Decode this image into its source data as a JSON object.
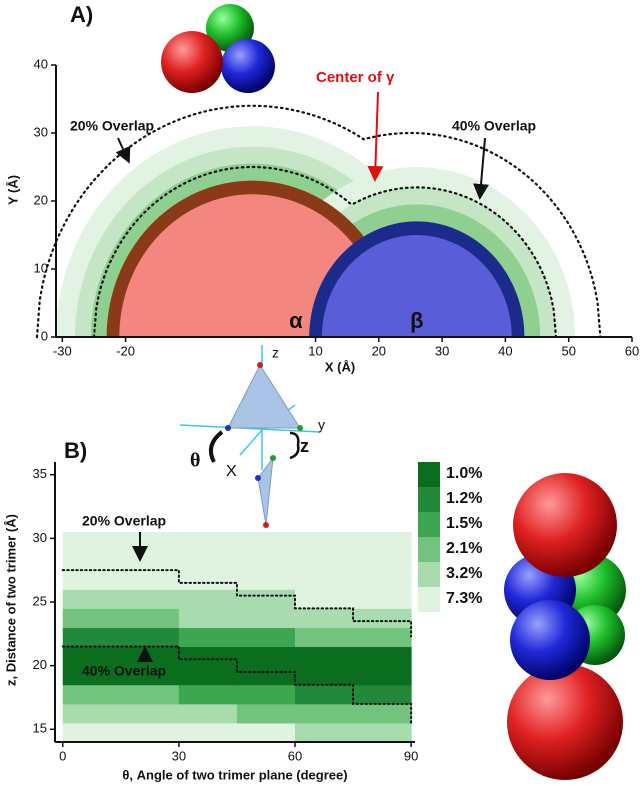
{
  "chart_data": [
    {
      "type": "overlap-map",
      "panel_label": "A)",
      "x_label": "X (Å)",
      "y_label": "Y (Å)",
      "xlim": [
        -31,
        60
      ],
      "ylim": [
        0,
        40
      ],
      "xticks": [
        -30,
        -20,
        10,
        20,
        30,
        40,
        50,
        60
      ],
      "yticks": [
        0,
        10,
        20,
        30,
        40
      ],
      "disks": [
        {
          "label": "α",
          "cx": 0,
          "r": 23,
          "color": "#f3877f",
          "ring": "#8a3a18"
        },
        {
          "label": "β",
          "cx": 26,
          "r": 17,
          "color": "#6f6ff2",
          "ring": "#1b2b8c"
        }
      ],
      "overlap_curves": [
        {
          "label": "20% Overlap",
          "arcs": [
            {
              "cx": 0,
              "r": 34
            },
            {
              "cx": 25,
              "r": 30
            }
          ]
        },
        {
          "label": "40% Overlap",
          "arcs": [
            {
              "cx": 0,
              "r": 25
            },
            {
              "cx": 26,
              "r": 22
            }
          ]
        }
      ],
      "annotation": "Center of γ"
    },
    {
      "type": "heatmap",
      "panel_label": "B)",
      "x_label": "θ, Angle of two trimer plane (degree)",
      "y_label": "z, Distance of two trimer (Å)",
      "xlim": [
        -2,
        91
      ],
      "ylim": [
        14,
        36
      ],
      "xticks": [
        0,
        30,
        60,
        90
      ],
      "yticks": [
        15,
        20,
        25,
        30,
        35
      ],
      "x_bins": [
        0,
        15,
        30,
        45,
        60,
        75,
        90
      ],
      "y_bins": [
        14,
        15.5,
        17,
        18.5,
        20,
        21.5,
        23,
        24.5,
        26,
        27.5,
        29,
        30.5
      ],
      "levels": [
        1.0,
        1.2,
        1.5,
        2.1,
        3.2,
        7.3
      ],
      "level_labels": [
        "1.0%",
        "1.2%",
        "1.5%",
        "2.1%",
        "3.2%",
        "7.3%"
      ],
      "level_colors": [
        "#0b6e1e",
        "#22893a",
        "#3ea550",
        "#72c37e",
        "#a8dbad",
        "#e0f2e0"
      ],
      "cells": [
        [
          7.3,
          7.3,
          7.3,
          7.3,
          3.2,
          3.2
        ],
        [
          3.2,
          3.2,
          3.2,
          2.1,
          2.1,
          2.1
        ],
        [
          2.1,
          2.1,
          1.5,
          1.5,
          1.2,
          1.2
        ],
        [
          1.0,
          1.0,
          1.0,
          1.0,
          1.0,
          1.0
        ],
        [
          1.0,
          1.0,
          1.0,
          1.0,
          1.0,
          1.0
        ],
        [
          1.2,
          1.2,
          1.5,
          1.5,
          2.1,
          2.1
        ],
        [
          2.1,
          2.1,
          3.2,
          3.2,
          3.2,
          3.2
        ],
        [
          3.2,
          3.2,
          3.2,
          3.2,
          7.3,
          7.3
        ],
        [
          7.3,
          7.3,
          7.3,
          7.3,
          7.3,
          7.3
        ],
        [
          7.3,
          7.3,
          7.3,
          7.3,
          7.3,
          7.3
        ],
        [
          7.3,
          7.3,
          7.3,
          7.3,
          7.3,
          7.3
        ]
      ],
      "overlap_lines": [
        {
          "name": "20% Overlap",
          "x": [
            0,
            15,
            30,
            45,
            60,
            75,
            90
          ],
          "y": [
            27.5,
            27.5,
            26.5,
            25.5,
            24.5,
            23.5,
            22.3
          ]
        },
        {
          "name": "40% Overlap",
          "x": [
            0,
            15,
            30,
            45,
            60,
            75,
            90
          ],
          "y": [
            21.5,
            21.5,
            20.5,
            19.5,
            18.5,
            17,
            15.5
          ]
        }
      ]
    }
  ],
  "inset_labels": [
    "z",
    "y",
    "θ",
    "X",
    "z"
  ]
}
